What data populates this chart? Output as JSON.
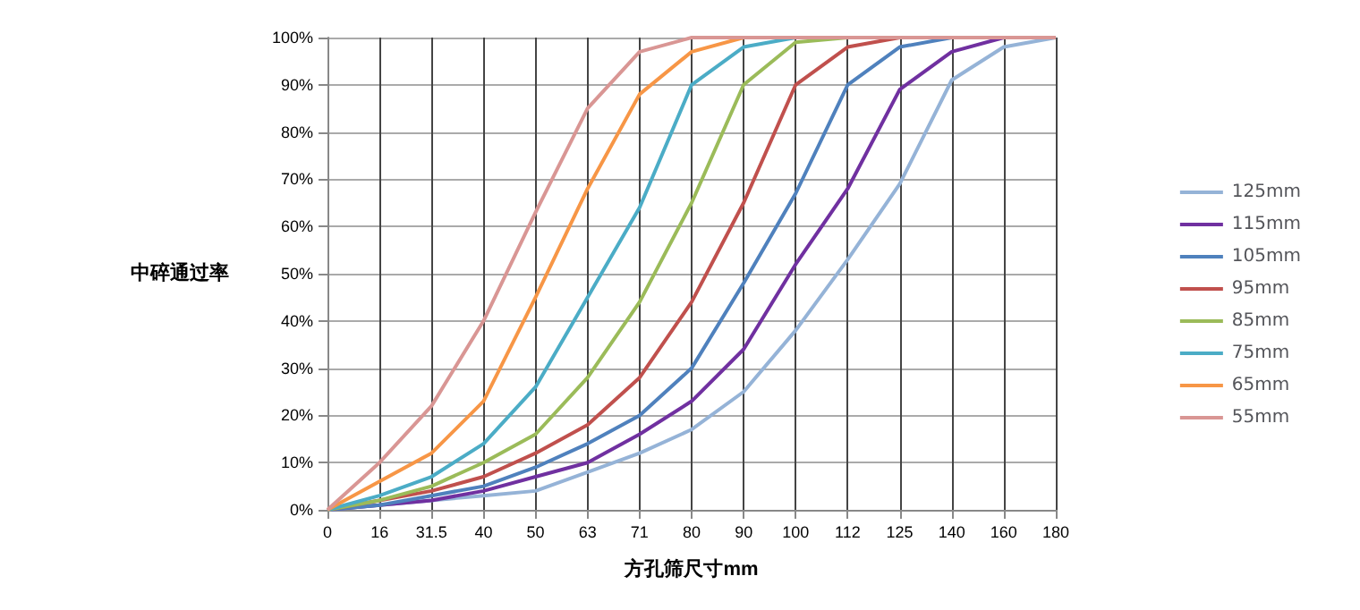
{
  "chart_data": {
    "type": "line",
    "xlabel": "方孔筛尺寸mm",
    "ylabel": "中碎通过率",
    "categories": [
      "0",
      "16",
      "31.5",
      "40",
      "50",
      "63",
      "71",
      "80",
      "90",
      "100",
      "112",
      "125",
      "140",
      "160",
      "180"
    ],
    "ylim": [
      0,
      100
    ],
    "yticks": [
      {
        "value": 0,
        "label": "0%"
      },
      {
        "value": 10,
        "label": "10%"
      },
      {
        "value": 20,
        "label": "20%"
      },
      {
        "value": 30,
        "label": "30%"
      },
      {
        "value": 40,
        "label": "40%"
      },
      {
        "value": 50,
        "label": "50%"
      },
      {
        "value": 60,
        "label": "60%"
      },
      {
        "value": 70,
        "label": "70%"
      },
      {
        "value": 80,
        "label": "80%"
      },
      {
        "value": 90,
        "label": "90%"
      },
      {
        "value": 100,
        "label": "100%"
      }
    ],
    "grid": true,
    "legend": "right",
    "marker": "none",
    "line_style": "solid",
    "series": [
      {
        "name": "125mm",
        "color": "#95b3d7",
        "values": [
          0,
          1,
          2,
          3,
          4,
          8,
          12,
          17,
          25,
          38,
          53,
          69,
          91,
          98,
          100
        ]
      },
      {
        "name": "115mm",
        "color": "#7030a0",
        "values": [
          0,
          1,
          2,
          4,
          7,
          10,
          16,
          23,
          34,
          52,
          68,
          89,
          97,
          100,
          100
        ]
      },
      {
        "name": "105mm",
        "color": "#4f81bd",
        "values": [
          0,
          1,
          3,
          5,
          9,
          14,
          20,
          30,
          48,
          67,
          90,
          98,
          100,
          100,
          100
        ]
      },
      {
        "name": "95mm",
        "color": "#c0504d",
        "values": [
          0,
          2,
          4,
          7,
          12,
          18,
          28,
          44,
          65,
          90,
          98,
          100,
          100,
          100,
          100
        ]
      },
      {
        "name": "85mm",
        "color": "#9bbb59",
        "values": [
          0,
          2,
          5,
          10,
          16,
          28,
          44,
          65,
          90,
          99,
          100,
          100,
          null,
          null,
          null
        ]
      },
      {
        "name": "75mm",
        "color": "#4bacc6",
        "values": [
          0,
          3,
          7,
          14,
          26,
          45,
          64,
          90,
          98,
          100,
          100,
          100,
          100,
          100,
          100
        ]
      },
      {
        "name": "65mm",
        "color": "#f79646",
        "values": [
          0,
          6,
          12,
          23,
          45,
          68,
          88,
          97,
          100,
          100,
          100,
          100,
          100,
          null,
          null
        ]
      },
      {
        "name": "55mm",
        "color": "#d99694",
        "values": [
          0,
          10,
          22,
          40,
          63,
          85,
          97,
          100,
          100,
          100,
          100,
          100,
          100,
          100,
          100
        ]
      }
    ]
  }
}
